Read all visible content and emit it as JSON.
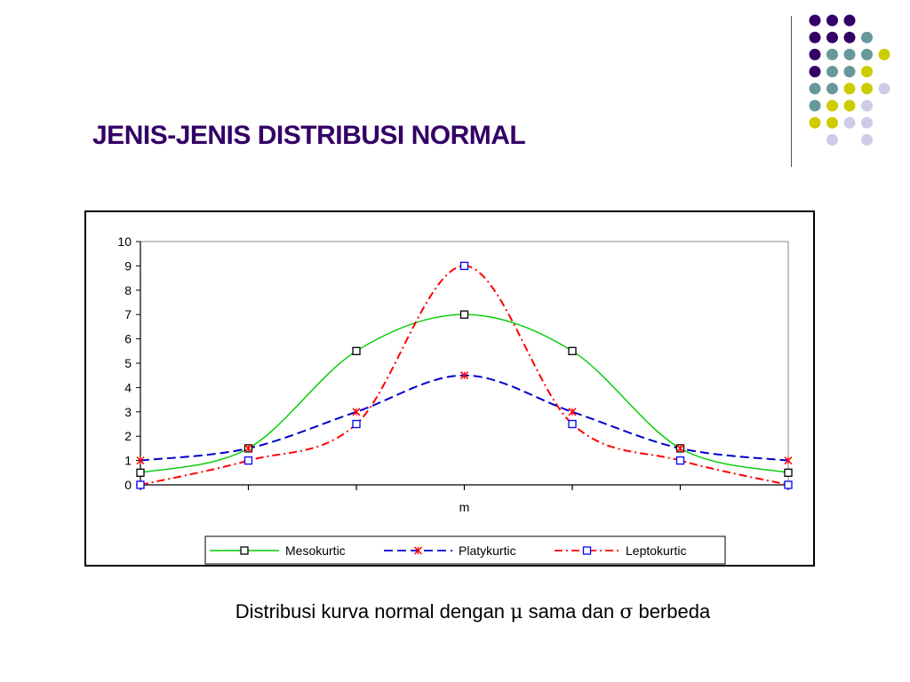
{
  "slide": {
    "title": "JENIS-JENIS DISTRIBUSI NORMAL",
    "caption_before_mu": "Distribusi kurva normal dengan ",
    "caption_mu": "μ",
    "caption_middle": " sama dan ",
    "caption_sigma": "σ",
    "caption_after": " berbeda"
  },
  "decor": {
    "dot_colors": [
      "#330066",
      "#669999",
      "#CCCC00",
      "#CCCCE6"
    ],
    "dot_rows": [
      [
        0,
        0,
        0,
        null,
        null
      ],
      [
        0,
        0,
        0,
        1,
        null
      ],
      [
        0,
        1,
        1,
        1,
        2
      ],
      [
        0,
        1,
        1,
        2,
        null
      ],
      [
        1,
        1,
        2,
        2,
        3
      ],
      [
        1,
        2,
        2,
        3,
        null
      ],
      [
        2,
        2,
        3,
        3,
        null
      ],
      [
        null,
        3,
        null,
        3,
        null
      ]
    ]
  },
  "chart_data": {
    "type": "line",
    "xlabel": "m",
    "ylabel": "",
    "ylim": [
      0,
      10
    ],
    "yticks": [
      0,
      1,
      2,
      3,
      4,
      5,
      6,
      7,
      8,
      9,
      10
    ],
    "x": [
      0,
      1,
      2,
      3,
      4,
      5,
      6
    ],
    "xtick_labels": [
      "",
      "",
      "",
      "",
      "",
      "",
      ""
    ],
    "grid": false,
    "legend_position": "bottom",
    "series": [
      {
        "name": "Mesokurtic",
        "values": [
          0.5,
          1.5,
          5.5,
          7.0,
          5.5,
          1.5,
          0.5
        ],
        "color": "#00CC00",
        "dash": "solid",
        "marker": "square",
        "marker_color": "#000000"
      },
      {
        "name": "Platykurtic",
        "values": [
          1.0,
          1.5,
          3.0,
          4.5,
          3.0,
          1.5,
          1.0
        ],
        "color": "#0000CC",
        "dash": "dash",
        "marker": "x",
        "marker_color": "#FF0000"
      },
      {
        "name": "Leptokurtic",
        "values": [
          0.0,
          1.0,
          2.5,
          9.0,
          2.5,
          1.0,
          0.0
        ],
        "color": "#FF0000",
        "dash": "dashdot",
        "marker": "square",
        "marker_color": "#0000FF"
      }
    ]
  }
}
